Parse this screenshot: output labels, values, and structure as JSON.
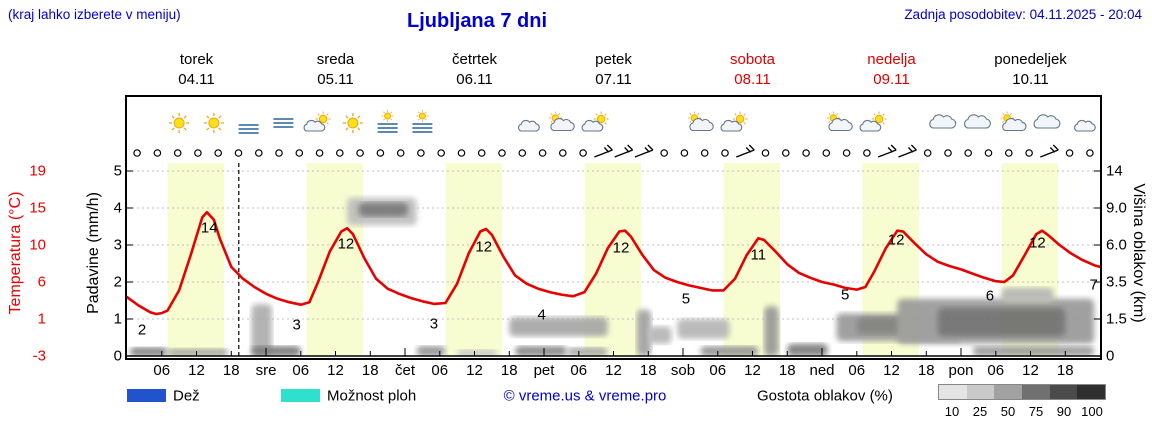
{
  "header": {
    "hint": "(kraj lahko izberete v meniju)",
    "title": "Ljubljana 7 dni",
    "updated": "Zadnja posodobitev: 04.11.2025 - 20:04"
  },
  "axis_left_temp": {
    "title": "Temperatura (°C)",
    "ticks": [
      "19",
      "15",
      "10",
      "6",
      "1",
      "-3"
    ],
    "color": "#ee0000"
  },
  "axis_left_precip": {
    "title": "Padavine (mm/h)",
    "ticks": [
      "5",
      "4",
      "3",
      "2",
      "1",
      "0"
    ]
  },
  "axis_right": {
    "title": "Višina oblakov (km)",
    "ticks": [
      "14",
      "9.0",
      "6.0",
      "3.5",
      "1.5",
      "0"
    ]
  },
  "day_headers": [
    {
      "name": "torek",
      "date": "04.11",
      "color": "#000000"
    },
    {
      "name": "sreda",
      "date": "05.11",
      "color": "#000000"
    },
    {
      "name": "četrtek",
      "date": "06.11",
      "color": "#000000"
    },
    {
      "name": "petek",
      "date": "07.11",
      "color": "#000000"
    },
    {
      "name": "sobota",
      "date": "08.11",
      "color": "#dd0000"
    },
    {
      "name": "nedelja",
      "date": "09.11",
      "color": "#dd0000"
    },
    {
      "name": "ponedeljek",
      "date": "10.11",
      "color": "#000000"
    }
  ],
  "x_ticks": [
    "06",
    "12",
    "18",
    "sre",
    "06",
    "12",
    "18",
    "čet",
    "06",
    "12",
    "18",
    "pet",
    "06",
    "12",
    "18",
    "sob",
    "06",
    "12",
    "18",
    "ned",
    "06",
    "12",
    "18",
    "pon",
    "06",
    "12",
    "18"
  ],
  "legend": {
    "rain_label": "Dež",
    "rain_color": "#2153cc",
    "showers_label": "Možnost ploh",
    "showers_color": "#2fe0cf",
    "credit": "© vreme.us & vreme.pro",
    "cloud_density_label": "Gostota oblakov (%)",
    "cloud_scale": [
      "10",
      "25",
      "50",
      "75",
      "90",
      "100"
    ],
    "cloud_scale_colors": [
      "#e4e4e4",
      "#c9c9c9",
      "#a2a2a2",
      "#707070",
      "#4b4b4b",
      "#2f2f2f"
    ]
  },
  "chart_data": {
    "type": "line",
    "title": "Ljubljana 7 dni",
    "x_axis": "hours from 00:00 04.11 (7 days)",
    "temp_axis_range": [
      -3,
      19
    ],
    "temp_ticks": [
      19,
      15,
      10,
      6,
      1,
      -3
    ],
    "precip_axis_range": [
      0,
      5.2
    ],
    "precip_ticks": [
      5,
      4,
      3,
      2,
      1,
      0
    ],
    "cloud_height_ticks_km": [
      14,
      9.0,
      6.0,
      3.5,
      1.5,
      0
    ],
    "daylight_band": {
      "start_hour": 7,
      "end_hour": 16.75,
      "color": "#f7fdd0"
    },
    "now_line_hour": 19.3,
    "series": [
      {
        "name": "Temperatura (°C)",
        "color": "#e80000",
        "points": [
          [
            0,
            4.0
          ],
          [
            2,
            3.0
          ],
          [
            4,
            2.2
          ],
          [
            5,
            2.0
          ],
          [
            6,
            2.1
          ],
          [
            7,
            2.4
          ],
          [
            9,
            4.8
          ],
          [
            11,
            9.0
          ],
          [
            13,
            13.5
          ],
          [
            13.8,
            14.1
          ],
          [
            15,
            13.2
          ],
          [
            16,
            11.0
          ],
          [
            18,
            7.6
          ],
          [
            20,
            6.2
          ],
          [
            22,
            5.2
          ],
          [
            24,
            4.4
          ],
          [
            26,
            3.8
          ],
          [
            28,
            3.4
          ],
          [
            30,
            3.1
          ],
          [
            31.5,
            3.4
          ],
          [
            33,
            5.8
          ],
          [
            35,
            9.4
          ],
          [
            37,
            11.8
          ],
          [
            38,
            12.2
          ],
          [
            39,
            11.5
          ],
          [
            41,
            8.6
          ],
          [
            43,
            6.2
          ],
          [
            45,
            5.0
          ],
          [
            47,
            4.4
          ],
          [
            49,
            3.9
          ],
          [
            51,
            3.5
          ],
          [
            53,
            3.2
          ],
          [
            55,
            3.3
          ],
          [
            57,
            5.6
          ],
          [
            59,
            9.2
          ],
          [
            61,
            11.8
          ],
          [
            62,
            12.1
          ],
          [
            63,
            11.4
          ],
          [
            65,
            8.8
          ],
          [
            67,
            6.6
          ],
          [
            69,
            5.6
          ],
          [
            71,
            5.0
          ],
          [
            73,
            4.6
          ],
          [
            75,
            4.3
          ],
          [
            77,
            4.1
          ],
          [
            79,
            4.6
          ],
          [
            81,
            6.8
          ],
          [
            83,
            9.8
          ],
          [
            85,
            11.8
          ],
          [
            86,
            11.9
          ],
          [
            87,
            11.2
          ],
          [
            89,
            9.0
          ],
          [
            91,
            7.2
          ],
          [
            93,
            6.3
          ],
          [
            95,
            5.8
          ],
          [
            97,
            5.4
          ],
          [
            99,
            5.1
          ],
          [
            101,
            4.8
          ],
          [
            103,
            4.8
          ],
          [
            105,
            6.2
          ],
          [
            107,
            9.0
          ],
          [
            109,
            11.0
          ],
          [
            110,
            10.8
          ],
          [
            112,
            9.4
          ],
          [
            114,
            7.9
          ],
          [
            116,
            6.9
          ],
          [
            118,
            6.3
          ],
          [
            120,
            5.8
          ],
          [
            122,
            5.5
          ],
          [
            124,
            5.1
          ],
          [
            126,
            4.9
          ],
          [
            127.5,
            5.2
          ],
          [
            129,
            7.0
          ],
          [
            131,
            9.8
          ],
          [
            133,
            11.9
          ],
          [
            134,
            11.8
          ],
          [
            136,
            10.4
          ],
          [
            138,
            9.1
          ],
          [
            140,
            8.2
          ],
          [
            142,
            7.7
          ],
          [
            144,
            7.3
          ],
          [
            146,
            6.8
          ],
          [
            148,
            6.3
          ],
          [
            150,
            5.9
          ],
          [
            151.5,
            5.8
          ],
          [
            153,
            6.6
          ],
          [
            155,
            9.0
          ],
          [
            157,
            11.5
          ],
          [
            158,
            11.9
          ],
          [
            159,
            11.4
          ],
          [
            161,
            10.2
          ],
          [
            163,
            9.2
          ],
          [
            165,
            8.4
          ],
          [
            167,
            7.8
          ],
          [
            168,
            7.6
          ]
        ]
      }
    ],
    "value_labels": [
      {
        "text": "2",
        "h": 2.6,
        "t": 0.1
      },
      {
        "text": "14",
        "h": 14.2,
        "t": 12.2
      },
      {
        "text": "3",
        "h": 29.3,
        "t": 0.7
      },
      {
        "text": "12",
        "h": 37.8,
        "t": 10.3
      },
      {
        "text": "3",
        "h": 53.0,
        "t": 0.8
      },
      {
        "text": "12",
        "h": 61.6,
        "t": 10.0
      },
      {
        "text": "4",
        "h": 71.6,
        "t": 1.9
      },
      {
        "text": "12",
        "h": 85.3,
        "t": 9.9
      },
      {
        "text": "5",
        "h": 96.5,
        "t": 3.8
      },
      {
        "text": "11",
        "h": 109.0,
        "t": 9.0
      },
      {
        "text": "5",
        "h": 124.0,
        "t": 4.2
      },
      {
        "text": "12",
        "h": 132.8,
        "t": 10.8
      },
      {
        "text": "6",
        "h": 149.0,
        "t": 4.1
      },
      {
        "text": "12",
        "h": 157.2,
        "t": 10.4
      },
      {
        "text": "7",
        "h": 166.9,
        "t": 5.5
      }
    ],
    "icons": [
      "moon",
      "sun",
      "sun",
      "moon-fog",
      "fog",
      "sun-cloud",
      "sun",
      "fog-sun",
      "fog-sun",
      "moon",
      "moon",
      "moon-cloud",
      "cloud-sun",
      "sun-cloud",
      "moon",
      "moon",
      "cloud-sun",
      "sun-cloud",
      "moon",
      "moon",
      "cloud-sun",
      "sun-cloud",
      "moon",
      "cloud",
      "cloud",
      "cloud-sun",
      "cloud",
      "moon-cloud"
    ],
    "symbol_row": [
      "o",
      "o",
      "o",
      "o",
      "o",
      "o",
      "o",
      "o",
      "o",
      "o",
      "o",
      "o",
      "o",
      "o",
      "o",
      "o",
      "o",
      "o",
      "o",
      "o",
      "o",
      "o",
      "o",
      "barb",
      "barb",
      "barb",
      "o",
      "o",
      "o",
      "o",
      "barb",
      "o",
      "o",
      "o",
      "o",
      "o",
      "o",
      "barb",
      "barb",
      "o",
      "o",
      "o",
      "o",
      "o",
      "o",
      "barb",
      "o",
      "o"
    ],
    "clouds": [
      {
        "h": [
          0.5,
          7
        ],
        "km": [
          0,
          0.35
        ],
        "density": 75
      },
      {
        "h": [
          7,
          17.5
        ],
        "km": [
          0,
          0.3
        ],
        "density": 50
      },
      {
        "h": [
          21.5,
          25
        ],
        "km": [
          0,
          2.3
        ],
        "density": 40
      },
      {
        "h": [
          21.5,
          30
        ],
        "km": [
          0,
          0.4
        ],
        "density": 80
      },
      {
        "h": [
          38,
          50
        ],
        "km": [
          7.6,
          10.4
        ],
        "density": 30
      },
      {
        "h": [
          40,
          48.5
        ],
        "km": [
          8.3,
          9.7
        ],
        "density": 80
      },
      {
        "h": [
          50,
          55
        ],
        "km": [
          0,
          0.4
        ],
        "density": 60
      },
      {
        "h": [
          57,
          64
        ],
        "km": [
          0,
          0.25
        ],
        "density": 25
      },
      {
        "h": [
          66,
          83
        ],
        "km": [
          0.8,
          1.6
        ],
        "density": 45
      },
      {
        "h": [
          67,
          76
        ],
        "km": [
          0,
          0.4
        ],
        "density": 70
      },
      {
        "h": [
          76,
          83
        ],
        "km": [
          0,
          0.35
        ],
        "density": 45
      },
      {
        "h": [
          88,
          90.5
        ],
        "km": [
          0,
          2.0
        ],
        "density": 50
      },
      {
        "h": [
          90,
          94
        ],
        "km": [
          0.5,
          1.2
        ],
        "density": 35
      },
      {
        "h": [
          95,
          104
        ],
        "km": [
          0.7,
          1.5
        ],
        "density": 35
      },
      {
        "h": [
          99,
          109
        ],
        "km": [
          0,
          0.4
        ],
        "density": 60
      },
      {
        "h": [
          110,
          112.5
        ],
        "km": [
          0,
          2.2
        ],
        "density": 55
      },
      {
        "h": [
          114,
          121
        ],
        "km": [
          0,
          0.5
        ],
        "density": 75
      },
      {
        "h": [
          122.5,
          144
        ],
        "km": [
          0.6,
          1.8
        ],
        "density": 55
      },
      {
        "h": [
          126,
          140
        ],
        "km": [
          0.9,
          1.6
        ],
        "density": 75
      },
      {
        "h": [
          133,
          167
        ],
        "km": [
          0.5,
          2.6
        ],
        "density": 55
      },
      {
        "h": [
          140,
          162
        ],
        "km": [
          0.8,
          2.1
        ],
        "density": 85
      },
      {
        "h": [
          146,
          167
        ],
        "km": [
          0,
          0.4
        ],
        "density": 55
      },
      {
        "h": [
          151,
          160
        ],
        "km": [
          2.4,
          3.2
        ],
        "density": 35
      }
    ]
  }
}
